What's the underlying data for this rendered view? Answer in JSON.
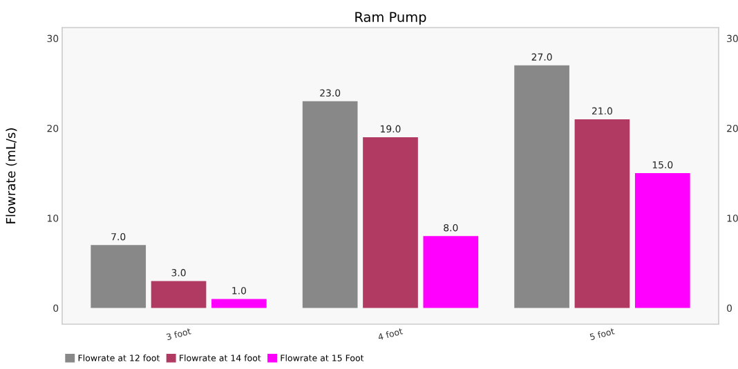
{
  "chart_data": {
    "type": "bar",
    "title": "Ram Pump",
    "ylabel": "Flowrate (mL/s)",
    "categories": [
      "3 foot",
      "4 foot",
      "5 foot"
    ],
    "series": [
      {
        "name": "Flowrate at 12 foot",
        "color": "#888888",
        "values": [
          7.0,
          23.0,
          27.0
        ]
      },
      {
        "name": "Flowrate at 14 foot",
        "color": "#b03a62",
        "values": [
          3.0,
          19.0,
          21.0
        ]
      },
      {
        "name": "Flowrate at 15 Foot",
        "color": "#ff00ff",
        "values": [
          1.0,
          8.0,
          15.0
        ]
      }
    ],
    "value_labels": [
      [
        "7.0",
        "23.0",
        "27.0"
      ],
      [
        "3.0",
        "19.0",
        "21.0"
      ],
      [
        "1.0",
        "8.0",
        "15.0"
      ]
    ],
    "ylim": [
      -1.8,
      31.2
    ],
    "yticks": [
      0,
      10,
      20,
      30
    ],
    "y2lim": [
      -1.8,
      31.2
    ],
    "y2ticks": [
      0,
      10,
      20,
      30
    ],
    "grid": false,
    "legend": "bottom left"
  }
}
